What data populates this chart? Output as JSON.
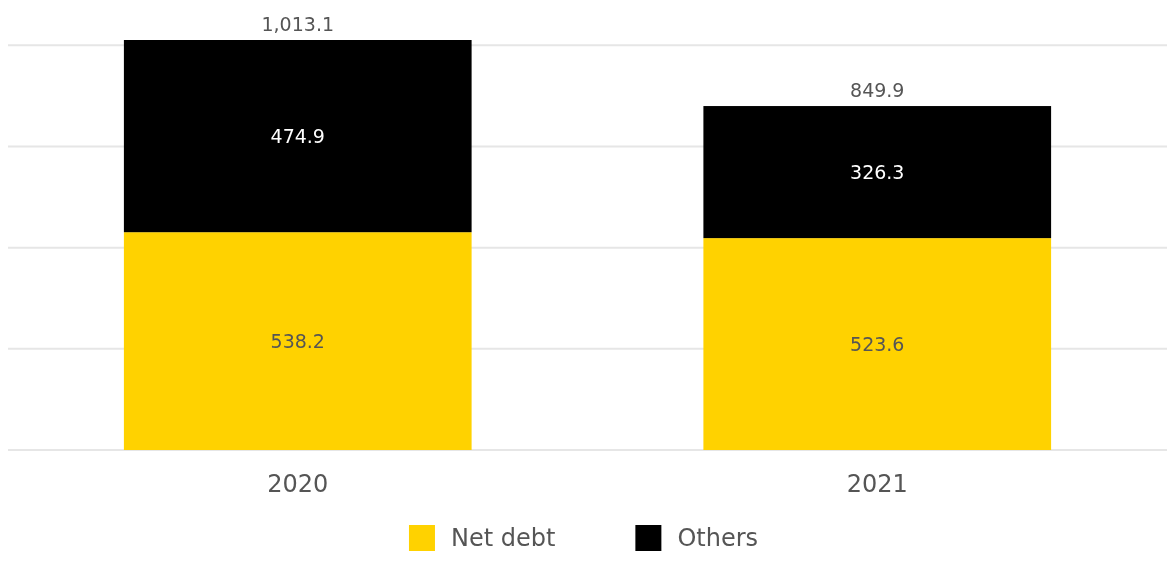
{
  "chart_data": {
    "type": "bar",
    "stacked": true,
    "categories": [
      "2020",
      "2021"
    ],
    "series": [
      {
        "name": "Net debt",
        "color": "#ffd200",
        "values": [
          538.2,
          523.6
        ]
      },
      {
        "name": "Others",
        "color": "#000000",
        "values": [
          474.9,
          326.3
        ]
      }
    ],
    "totals": [
      "1,013.1",
      "849.9"
    ],
    "yticks": [
      {
        "value": 0,
        "label": null
      },
      {
        "value": 250,
        "label": null
      },
      {
        "value": 500,
        "label": null
      },
      {
        "value": 750,
        "label": null
      },
      {
        "value": 1000,
        "label": null
      }
    ],
    "tick_labels": "x",
    "grid": "y",
    "legend": "bottom",
    "data_labels": true
  }
}
